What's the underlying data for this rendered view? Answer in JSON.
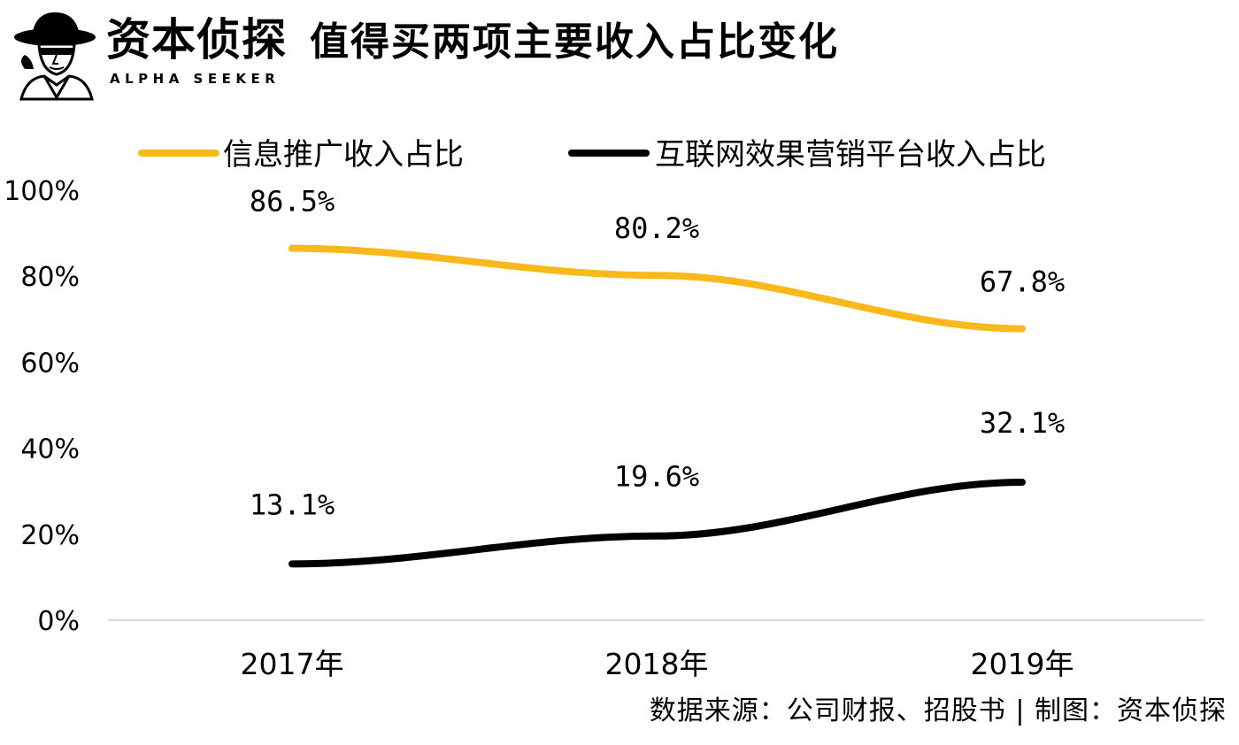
{
  "header": {
    "brand_cn": "资本侦探",
    "brand_en": "ALPHA SEEKER",
    "logo_icon": "detective-logo-icon"
  },
  "chart_data": {
    "type": "line",
    "title": "值得买两项主要收入占比变化",
    "categories": [
      "2017年",
      "2018年",
      "2019年"
    ],
    "series": [
      {
        "name": "信息推广收入占比",
        "color": "#F9B91A",
        "values": [
          86.5,
          80.2,
          67.8
        ],
        "labels": [
          "86.5%",
          "80.2%",
          "67.8%"
        ]
      },
      {
        "name": "互联网效果营销平台收入占比",
        "color": "#000000",
        "values": [
          13.1,
          19.6,
          32.1
        ],
        "labels": [
          "13.1%",
          "19.6%",
          "32.1%"
        ]
      }
    ],
    "ylim": [
      0,
      100
    ],
    "yticks": [
      0,
      20,
      40,
      60,
      80,
      100
    ],
    "ytick_labels": [
      "0%",
      "20%",
      "40%",
      "60%",
      "80%",
      "100%"
    ],
    "xlabel": "",
    "ylabel": "",
    "grid": false,
    "legend": "top"
  },
  "footer": {
    "source": "数据来源：公司财报、招股书 | 制图：资本侦探"
  }
}
